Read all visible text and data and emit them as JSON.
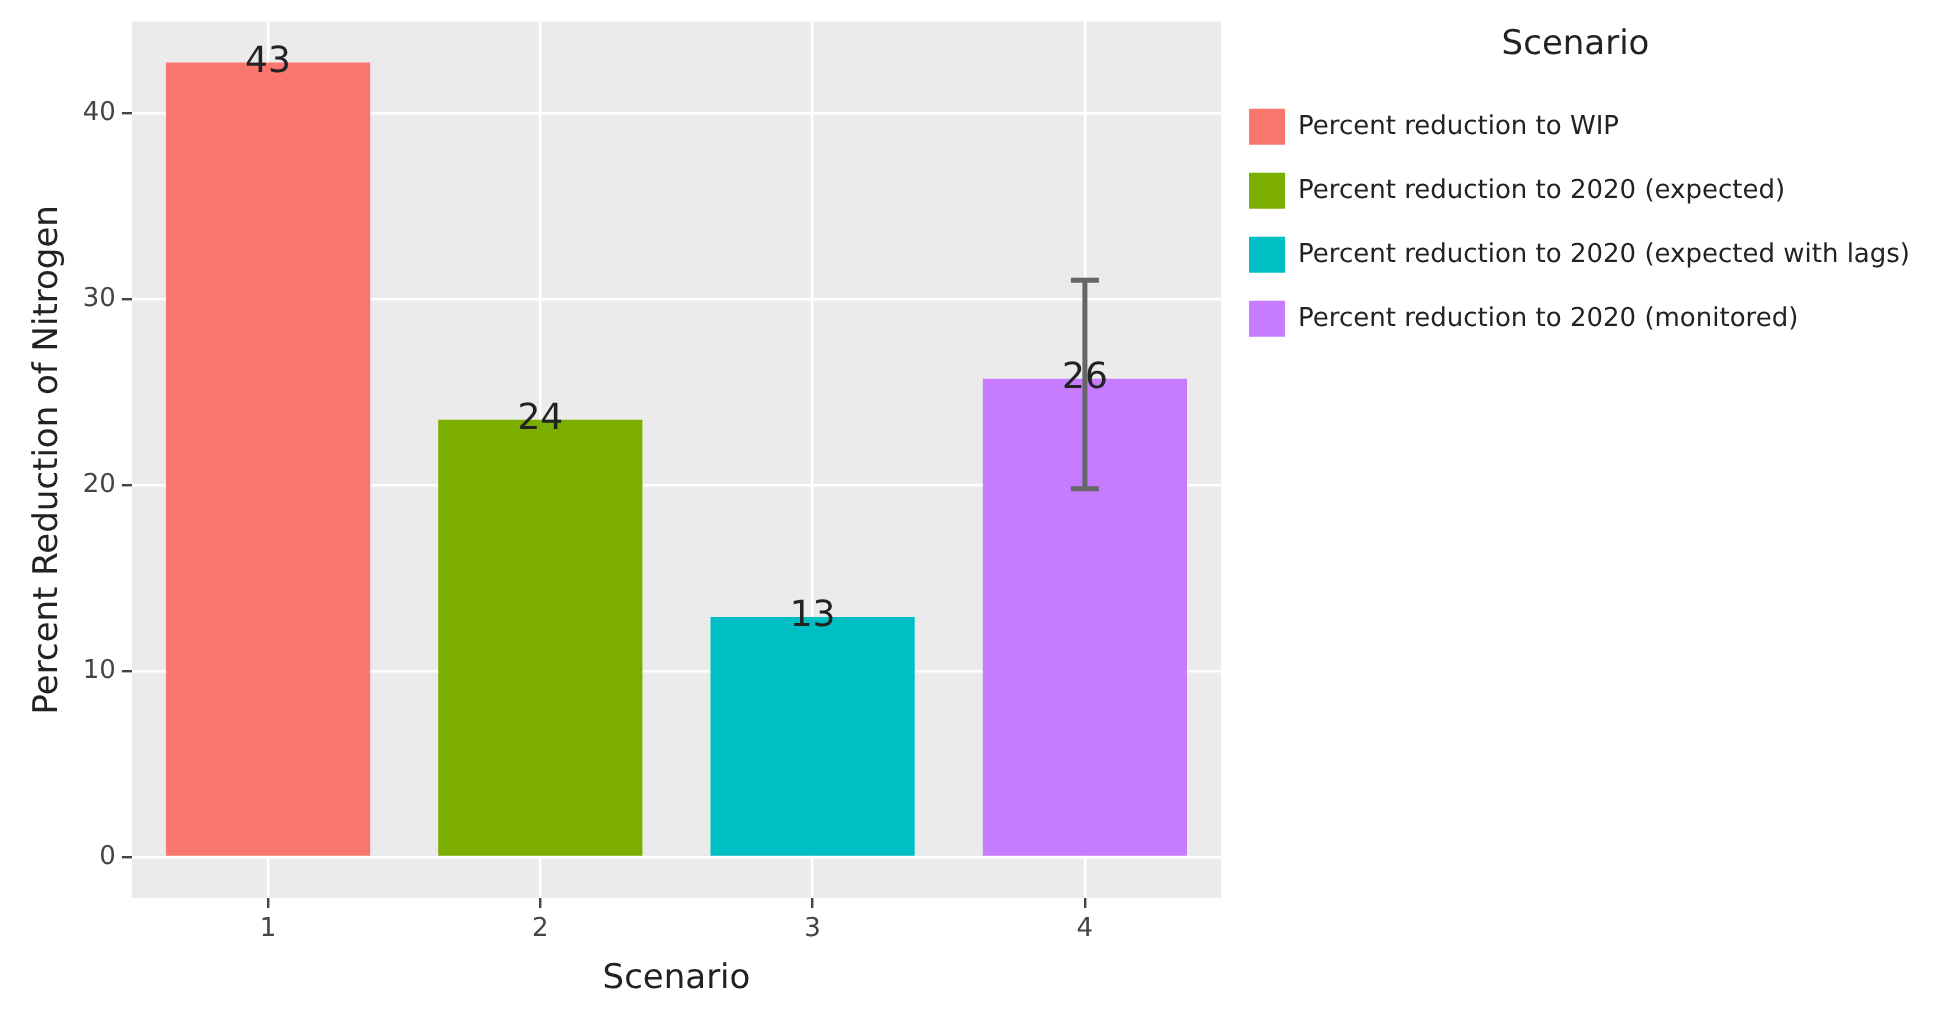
{
  "chart_data": {
    "type": "bar",
    "xlabel": "Scenario",
    "ylabel": "Percent Reduction of Nitrogen",
    "legend_title": "Scenario",
    "categories": [
      "1",
      "2",
      "3",
      "4"
    ],
    "series": [
      {
        "name": "Percent reduction to WIP",
        "color": "#f8766d",
        "values": [
          42.7,
          null,
          null,
          null
        ],
        "value_labels": [
          "43",
          null,
          null,
          null
        ]
      },
      {
        "name": "Percent reduction to 2020 (expected)",
        "color": "#7cae00",
        "values": [
          null,
          23.5,
          null,
          null
        ],
        "value_labels": [
          null,
          "24",
          null,
          null
        ]
      },
      {
        "name": "Percent reduction to 2020 (expected with lags)",
        "color": "#00bfc4",
        "values": [
          null,
          null,
          12.9,
          null
        ],
        "value_labels": [
          null,
          null,
          "13",
          null
        ]
      },
      {
        "name": "Percent reduction to 2020 (monitored)",
        "color": "#c77cff",
        "values": [
          null,
          null,
          null,
          25.7
        ],
        "value_labels": [
          null,
          null,
          null,
          "26"
        ],
        "errors": [
          null,
          null,
          null,
          [
            19.8,
            31
          ]
        ]
      }
    ],
    "ylim": [
      -2.2,
      44.9
    ],
    "yticks": [
      0,
      10,
      20,
      30,
      40
    ],
    "grid": true,
    "legend": "right"
  }
}
